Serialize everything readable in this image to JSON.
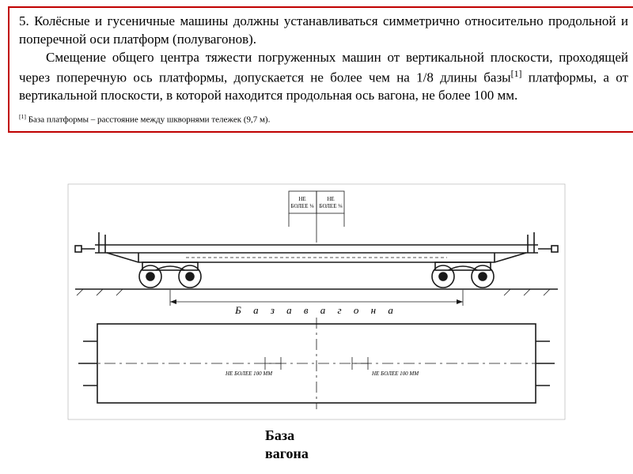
{
  "textbox": {
    "border_color": "#c00000",
    "p1": "5. Колёсные и гусеничные машины должны устанавливаться симметрично относительно продольной и поперечной оси платформ (полувагонов).",
    "p2_a": "Смещение общего центра тяжести погруженных машин от вертикальной плоскости, проходящей через поперечную ось платформы, допускается не более чем на 1/8 длины базы",
    "p2_sup": "[1]",
    "p2_b": " платформы, а от вертикальной плоскости, в которой находится продольная ось вагона, не более 100 мм.",
    "footnote_sup": "[1]",
    "footnote": " База платформы – расстояние между шкворнями тележек (9,7 м)."
  },
  "figure": {
    "type": "diagram",
    "description": "railway_flatcar_side_and_top_view",
    "colors": {
      "stroke": "#1a1a1a",
      "background": "#ffffff"
    },
    "stroke_width_main": 1.6,
    "stroke_width_thin": 0.8,
    "labels": {
      "top_left": "НЕ БОЛЕЕ 1/8",
      "top_right": "НЕ БОЛЕЕ 1/8",
      "middle_spaced": "Б а з а   в а г о н а",
      "bottom_left": "НЕ БОЛЕЕ 100 ММ",
      "bottom_right": "НЕ БОЛЕЕ 100 ММ"
    },
    "label_fontsize": 7,
    "label_fontsize_mid": 13
  },
  "caption": "База вагона"
}
